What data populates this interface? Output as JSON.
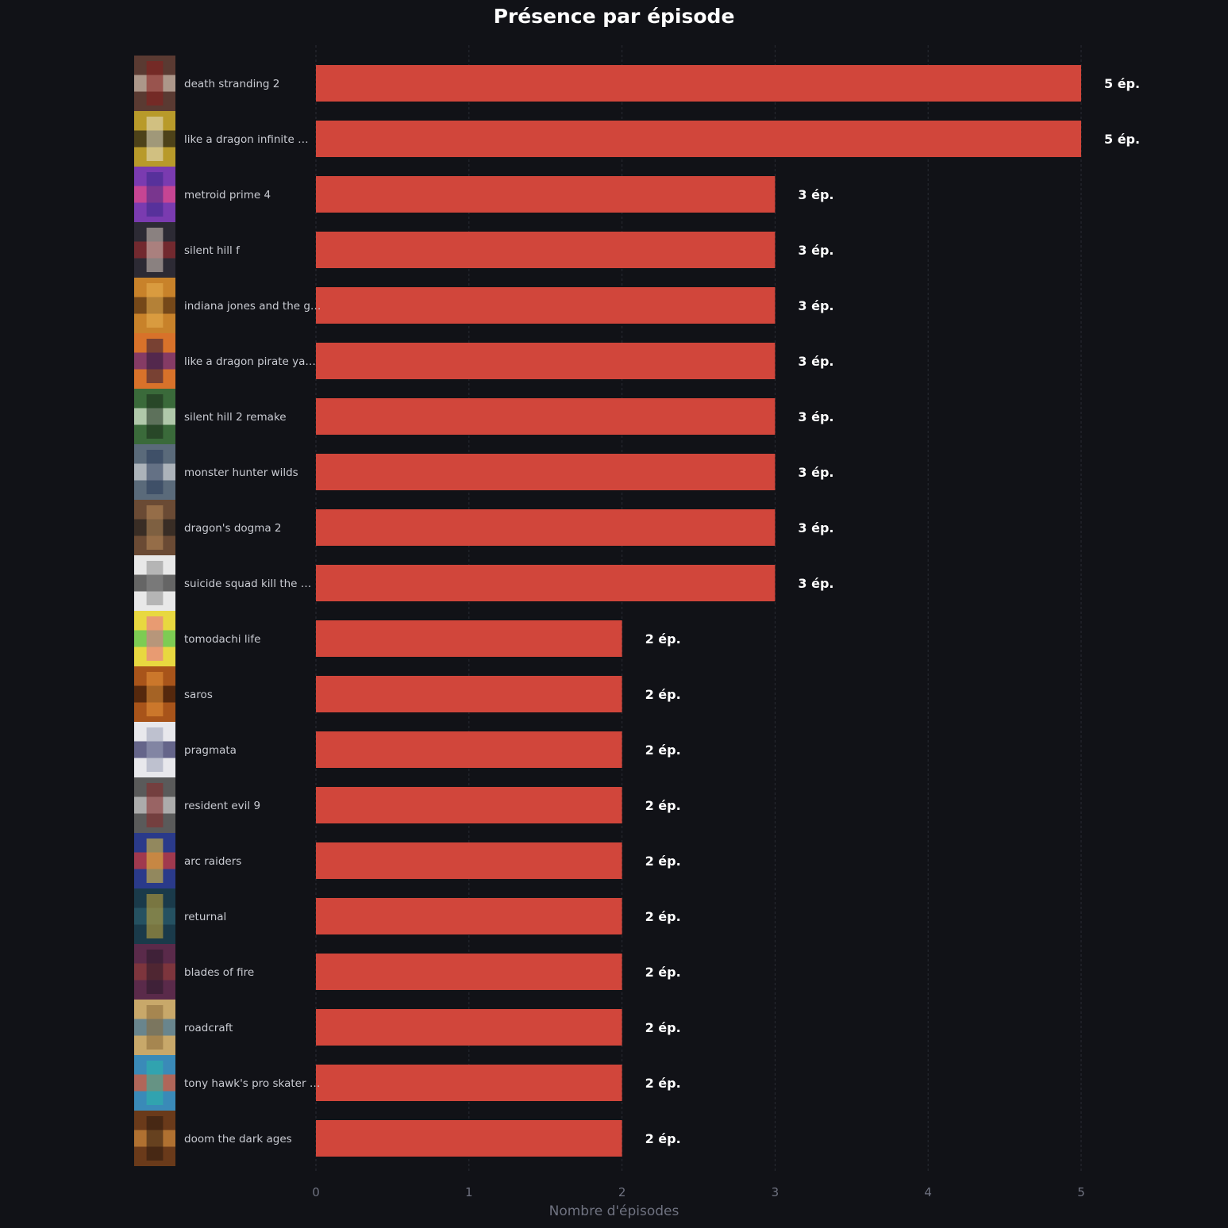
{
  "chart_data": {
    "type": "bar",
    "orientation": "horizontal",
    "title": "Présence par épisode",
    "xlabel": "Nombre d'épisodes",
    "ylabel": "",
    "xlim": [
      0,
      5.4
    ],
    "xticks": [
      "0",
      "1",
      "2",
      "3",
      "4",
      "5"
    ],
    "grid": "vertical-dashed",
    "legend": "none",
    "colors": {
      "background": "#111217",
      "bar": "#d1463b",
      "grid": "#2a2c34",
      "category_label": "#c9cbd2",
      "value_label": "#ffffff",
      "axis_text": "#6f7280"
    },
    "value_suffix": " ép.",
    "categories": [
      "death stranding 2",
      "like a dragon infinite …",
      "metroid prime 4",
      "silent hill f",
      "indiana jones and the g…",
      "like a dragon pirate ya…",
      "silent hill 2 remake",
      "monster hunter wilds",
      "dragon's dogma 2",
      "suicide squad kill the …",
      "tomodachi life",
      "saros",
      "pragmata",
      "resident evil 9",
      "arc raiders",
      "returnal",
      "blades of fire",
      "roadcraft",
      "tony hawk's pro skater …",
      "doom the dark ages"
    ],
    "values": [
      5,
      5,
      3,
      3,
      3,
      3,
      3,
      3,
      3,
      3,
      2,
      2,
      2,
      2,
      2,
      2,
      2,
      2,
      2,
      2
    ],
    "value_labels": [
      "5 ép.",
      "5 ép.",
      "3 ép.",
      "3 ép.",
      "3 ép.",
      "3 ép.",
      "3 ép.",
      "3 ép.",
      "3 ép.",
      "3 ép.",
      "2 ép.",
      "2 ép.",
      "2 ép.",
      "2 ép.",
      "2 ép.",
      "2 ép.",
      "2 ép.",
      "2 ép.",
      "2 ép.",
      "2 ép."
    ],
    "thumbnails": [
      {
        "icon": "game-cover-thumbnail",
        "colors": [
          "#5a3a32",
          "#c8b7a8",
          "#8a1d1d"
        ]
      },
      {
        "icon": "game-cover-thumbnail",
        "colors": [
          "#b89a2a",
          "#2a2414",
          "#e6e0c8"
        ]
      },
      {
        "icon": "game-cover-thumbnail",
        "colors": [
          "#7a3bb0",
          "#e04a8a",
          "#3a2a8a"
        ]
      },
      {
        "icon": "game-cover-thumbnail",
        "colors": [
          "#2c2a34",
          "#8a2a2e",
          "#d8c8c0"
        ]
      },
      {
        "icon": "game-cover-thumbnail",
        "colors": [
          "#c8822a",
          "#5a3414",
          "#e8b050"
        ]
      },
      {
        "icon": "game-cover-thumbnail",
        "colors": [
          "#d8722a",
          "#6a2a7a",
          "#2a1a3a"
        ]
      },
      {
        "icon": "game-cover-thumbnail",
        "colors": [
          "#3a6a3a",
          "#d8e8d0",
          "#1a2a1a"
        ]
      },
      {
        "icon": "game-cover-thumbnail",
        "colors": [
          "#5a6a7a",
          "#c8ccd0",
          "#2a3a5a"
        ]
      },
      {
        "icon": "game-cover-thumbnail",
        "colors": [
          "#6a4a34",
          "#2a2420",
          "#b88a5a"
        ]
      },
      {
        "icon": "game-cover-thumbnail",
        "colors": [
          "#e8e8e8",
          "#3a3a3a",
          "#8a8a8a"
        ]
      },
      {
        "icon": "game-cover-thumbnail",
        "colors": [
          "#e8d840",
          "#5ac85a",
          "#e86a9a"
        ]
      },
      {
        "icon": "game-cover-thumbnail",
        "colors": [
          "#a8541a",
          "#3a1a0a",
          "#e8943a"
        ]
      },
      {
        "icon": "game-cover-thumbnail",
        "colors": [
          "#e8e8ec",
          "#3a3a6a",
          "#9aa0b8"
        ]
      },
      {
        "icon": "game-cover-thumbnail",
        "colors": [
          "#5a5a5a",
          "#c8c8c8",
          "#8a2a2a"
        ]
      },
      {
        "icon": "game-cover-thumbnail",
        "colors": [
          "#2a3a8a",
          "#c83a3a",
          "#e8c83a"
        ]
      },
      {
        "icon": "game-cover-thumbnail",
        "colors": [
          "#1a3a4a",
          "#2a5a6a",
          "#c8a83a"
        ]
      },
      {
        "icon": "game-cover-thumbnail",
        "colors": [
          "#5a2a4a",
          "#8a3a3a",
          "#2a1a2a"
        ]
      },
      {
        "icon": "game-cover-thumbnail",
        "colors": [
          "#c8a86a",
          "#4a7a9a",
          "#8a6a3a"
        ]
      },
      {
        "icon": "game-cover-thumbnail",
        "colors": [
          "#3a8ab8",
          "#d85a3a",
          "#2ab8a8"
        ]
      },
      {
        "icon": "game-cover-thumbnail",
        "colors": [
          "#6a3a1a",
          "#c8843a",
          "#2a1a10"
        ]
      }
    ]
  }
}
